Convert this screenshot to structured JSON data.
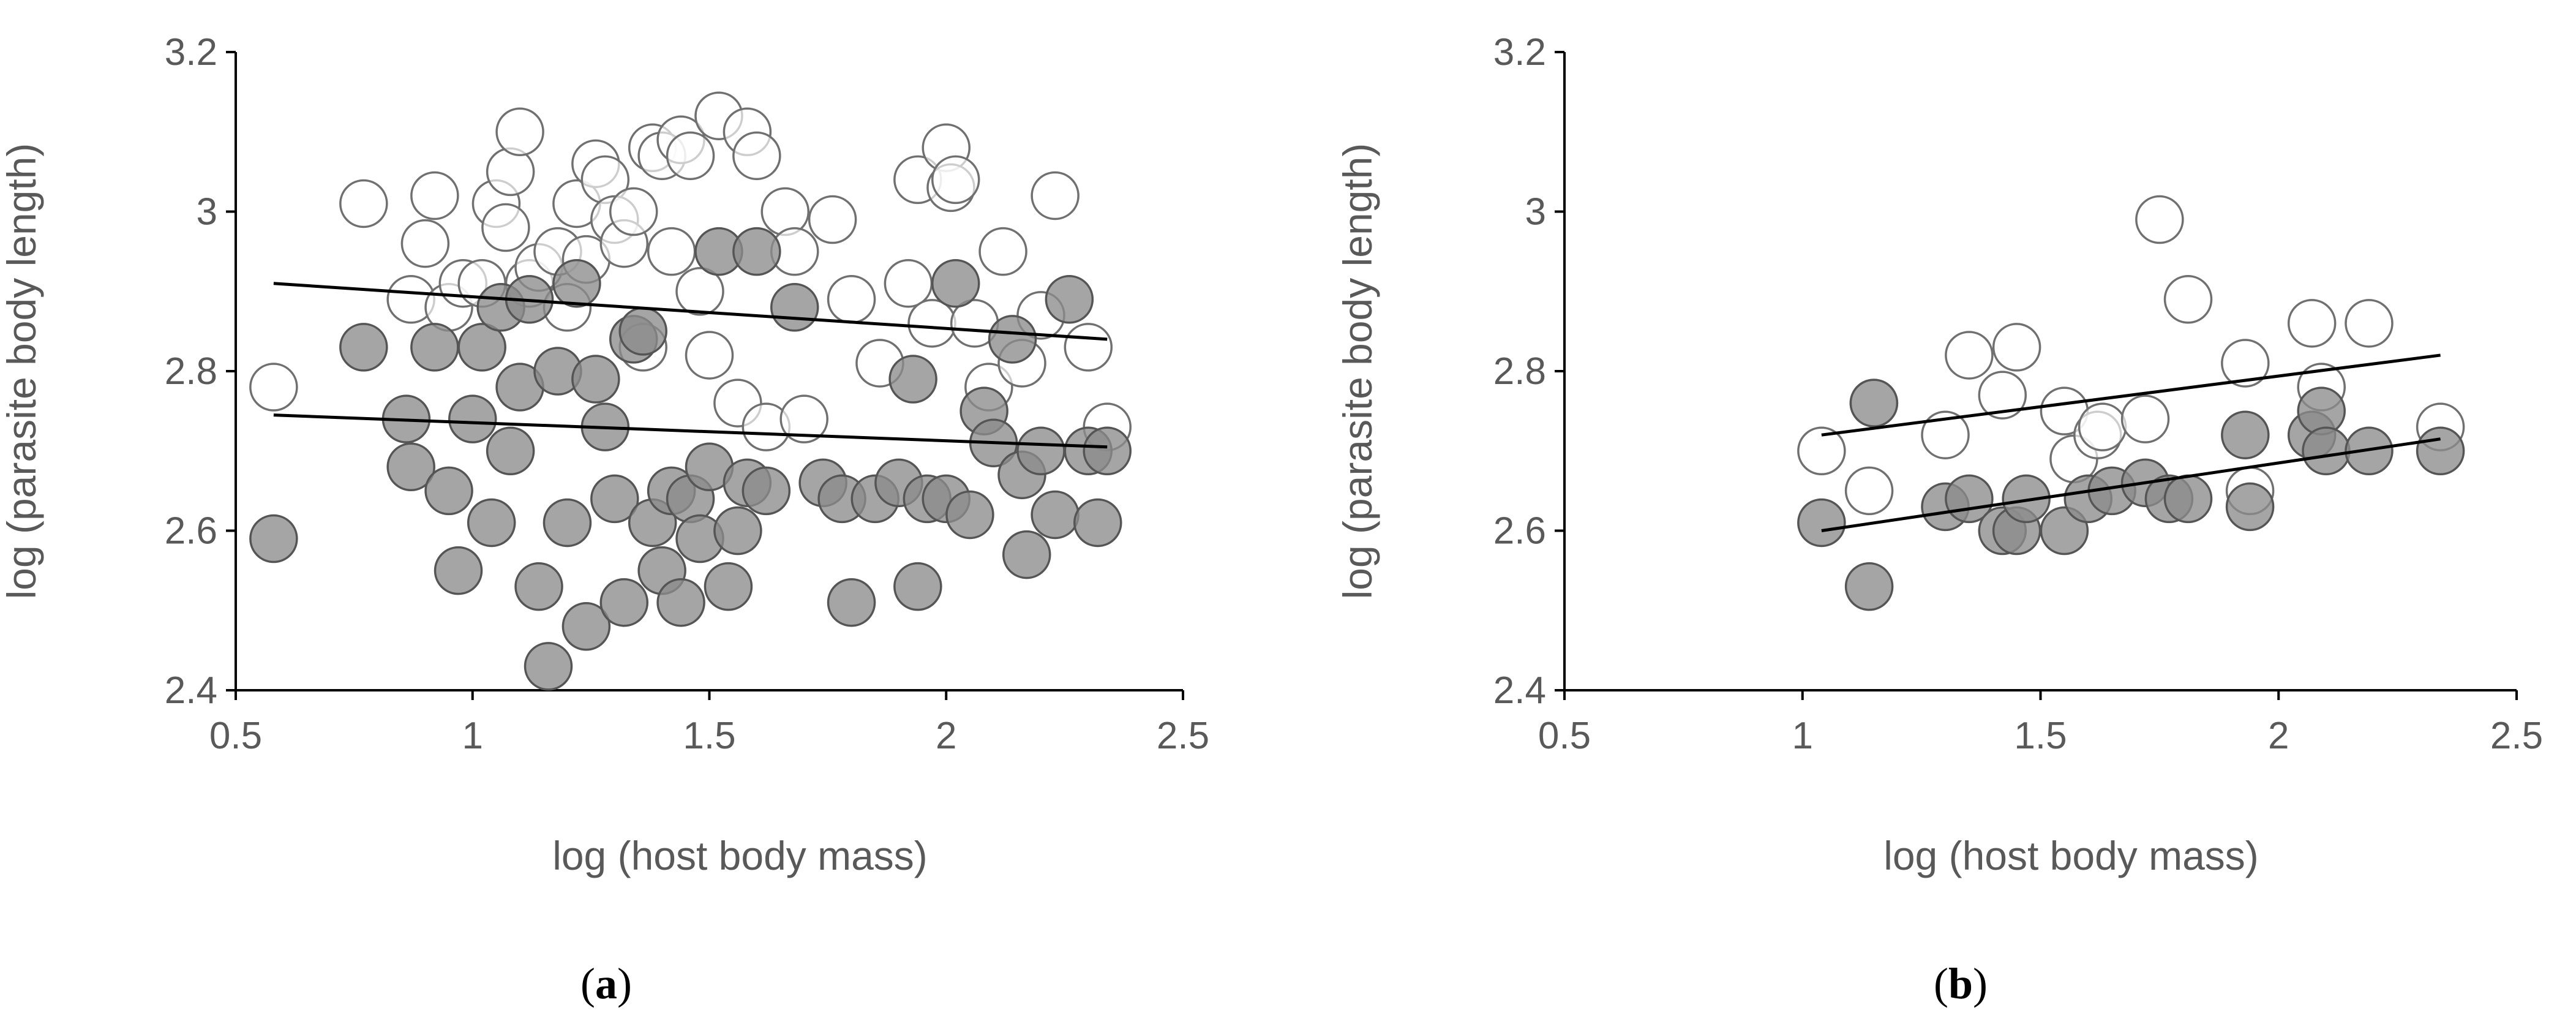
{
  "figure": {
    "panels": [
      {
        "label_open": "(",
        "label_letter": "a",
        "label_close": ")"
      },
      {
        "label_open": "(",
        "label_letter": "b",
        "label_close": ")"
      }
    ]
  },
  "colors": {
    "open_fill": "#ffffff",
    "open_stroke": "#707070",
    "filled_fill": "#8c8c8c",
    "filled_stroke": "#555555",
    "fit_line": "#000000",
    "axis": "#000000",
    "text": "#595959"
  },
  "chart_data": [
    {
      "type": "scatter",
      "panel": "a",
      "xlabel": "log (host body mass)",
      "ylabel": "log (parasite body length)",
      "xlim": [
        0.5,
        2.5
      ],
      "ylim": [
        2.4,
        3.2
      ],
      "xticks": [
        "0.5",
        "1",
        "1.5",
        "2",
        "2.5"
      ],
      "yticks": [
        "2.4",
        "2.6",
        "2.8",
        "3",
        "3.2"
      ],
      "series": [
        {
          "name": "open",
          "style": "open",
          "points": [
            [
              0.58,
              2.78
            ],
            [
              0.77,
              3.01
            ],
            [
              0.87,
              2.89
            ],
            [
              0.9,
              2.96
            ],
            [
              0.92,
              3.02
            ],
            [
              0.95,
              2.88
            ],
            [
              0.98,
              2.91
            ],
            [
              1.02,
              2.91
            ],
            [
              1.05,
              3.01
            ],
            [
              1.07,
              2.98
            ],
            [
              1.08,
              3.05
            ],
            [
              1.1,
              3.1
            ],
            [
              1.12,
              2.91
            ],
            [
              1.14,
              2.93
            ],
            [
              1.18,
              2.95
            ],
            [
              1.2,
              2.88
            ],
            [
              1.22,
              3.01
            ],
            [
              1.24,
              2.94
            ],
            [
              1.26,
              3.06
            ],
            [
              1.28,
              3.04
            ],
            [
              1.3,
              2.99
            ],
            [
              1.32,
              2.96
            ],
            [
              1.34,
              3.0
            ],
            [
              1.36,
              2.83
            ],
            [
              1.38,
              3.08
            ],
            [
              1.4,
              3.07
            ],
            [
              1.42,
              2.95
            ],
            [
              1.44,
              3.09
            ],
            [
              1.46,
              3.07
            ],
            [
              1.48,
              2.9
            ],
            [
              1.5,
              2.82
            ],
            [
              1.52,
              3.12
            ],
            [
              1.56,
              2.76
            ],
            [
              1.58,
              3.1
            ],
            [
              1.6,
              3.07
            ],
            [
              1.62,
              2.73
            ],
            [
              1.66,
              3.0
            ],
            [
              1.68,
              2.95
            ],
            [
              1.7,
              2.74
            ],
            [
              1.76,
              2.99
            ],
            [
              1.8,
              2.89
            ],
            [
              1.86,
              2.81
            ],
            [
              1.92,
              2.91
            ],
            [
              1.94,
              3.04
            ],
            [
              1.97,
              2.86
            ],
            [
              2.0,
              3.08
            ],
            [
              2.01,
              3.03
            ],
            [
              2.02,
              3.04
            ],
            [
              2.06,
              2.86
            ],
            [
              2.09,
              2.78
            ],
            [
              2.12,
              2.95
            ],
            [
              2.16,
              2.81
            ],
            [
              2.2,
              2.87
            ],
            [
              2.23,
              3.02
            ],
            [
              2.3,
              2.83
            ],
            [
              2.34,
              2.73
            ]
          ]
        },
        {
          "name": "filled",
          "style": "filled",
          "points": [
            [
              0.58,
              2.59
            ],
            [
              0.77,
              2.83
            ],
            [
              0.86,
              2.74
            ],
            [
              0.87,
              2.68
            ],
            [
              0.92,
              2.83
            ],
            [
              0.95,
              2.65
            ],
            [
              0.97,
              2.55
            ],
            [
              1.0,
              2.74
            ],
            [
              1.02,
              2.83
            ],
            [
              1.04,
              2.61
            ],
            [
              1.06,
              2.88
            ],
            [
              1.08,
              2.7
            ],
            [
              1.1,
              2.78
            ],
            [
              1.12,
              2.89
            ],
            [
              1.14,
              2.53
            ],
            [
              1.16,
              2.43
            ],
            [
              1.18,
              2.8
            ],
            [
              1.2,
              2.61
            ],
            [
              1.22,
              2.91
            ],
            [
              1.24,
              2.48
            ],
            [
              1.26,
              2.79
            ],
            [
              1.28,
              2.73
            ],
            [
              1.3,
              2.64
            ],
            [
              1.32,
              2.51
            ],
            [
              1.34,
              2.84
            ],
            [
              1.36,
              2.85
            ],
            [
              1.38,
              2.61
            ],
            [
              1.4,
              2.55
            ],
            [
              1.42,
              2.65
            ],
            [
              1.44,
              2.51
            ],
            [
              1.46,
              2.64
            ],
            [
              1.48,
              2.59
            ],
            [
              1.5,
              2.68
            ],
            [
              1.52,
              2.95
            ],
            [
              1.54,
              2.53
            ],
            [
              1.56,
              2.6
            ],
            [
              1.58,
              2.66
            ],
            [
              1.6,
              2.95
            ],
            [
              1.62,
              2.65
            ],
            [
              1.68,
              2.88
            ],
            [
              1.74,
              2.66
            ],
            [
              1.78,
              2.64
            ],
            [
              1.8,
              2.51
            ],
            [
              1.85,
              2.64
            ],
            [
              1.9,
              2.66
            ],
            [
              1.93,
              2.79
            ],
            [
              1.94,
              2.53
            ],
            [
              1.96,
              2.64
            ],
            [
              2.0,
              2.64
            ],
            [
              2.02,
              2.91
            ],
            [
              2.05,
              2.62
            ],
            [
              2.08,
              2.75
            ],
            [
              2.1,
              2.71
            ],
            [
              2.14,
              2.84
            ],
            [
              2.16,
              2.67
            ],
            [
              2.17,
              2.57
            ],
            [
              2.2,
              2.7
            ],
            [
              2.23,
              2.62
            ],
            [
              2.26,
              2.89
            ],
            [
              2.3,
              2.7
            ],
            [
              2.32,
              2.61
            ],
            [
              2.34,
              2.7
            ]
          ]
        }
      ],
      "fit_lines": [
        {
          "name": "open",
          "x": [
            0.58,
            2.34
          ],
          "y": [
            2.91,
            2.84
          ]
        },
        {
          "name": "filled",
          "x": [
            0.58,
            2.34
          ],
          "y": [
            2.745,
            2.705
          ]
        }
      ]
    },
    {
      "type": "scatter",
      "panel": "b",
      "xlabel": "log (host body mass)",
      "ylabel": "log (parasite body length)",
      "xlim": [
        0.5,
        2.5
      ],
      "ylim": [
        2.4,
        3.2
      ],
      "xticks": [
        "0.5",
        "1",
        "1.5",
        "2",
        "2.5"
      ],
      "yticks": [
        "2.4",
        "2.6",
        "2.8",
        "3",
        "3.2"
      ],
      "series": [
        {
          "name": "open",
          "style": "open",
          "points": [
            [
              1.04,
              2.7
            ],
            [
              1.14,
              2.65
            ],
            [
              1.15,
              2.76
            ],
            [
              1.3,
              2.72
            ],
            [
              1.35,
              2.82
            ],
            [
              1.42,
              2.77
            ],
            [
              1.45,
              2.83
            ],
            [
              1.55,
              2.75
            ],
            [
              1.57,
              2.69
            ],
            [
              1.62,
              2.72
            ],
            [
              1.63,
              2.73
            ],
            [
              1.72,
              2.74
            ],
            [
              1.75,
              2.99
            ],
            [
              1.81,
              2.89
            ],
            [
              1.93,
              2.81
            ],
            [
              1.94,
              2.65
            ],
            [
              2.07,
              2.86
            ],
            [
              2.09,
              2.78
            ],
            [
              2.19,
              2.86
            ],
            [
              2.34,
              2.73
            ]
          ]
        },
        {
          "name": "filled",
          "style": "filled",
          "points": [
            [
              1.04,
              2.61
            ],
            [
              1.14,
              2.53
            ],
            [
              1.15,
              2.76
            ],
            [
              1.3,
              2.63
            ],
            [
              1.35,
              2.64
            ],
            [
              1.42,
              2.6
            ],
            [
              1.45,
              2.6
            ],
            [
              1.47,
              2.64
            ],
            [
              1.55,
              2.6
            ],
            [
              1.6,
              2.64
            ],
            [
              1.65,
              2.65
            ],
            [
              1.72,
              2.66
            ],
            [
              1.77,
              2.64
            ],
            [
              1.81,
              2.64
            ],
            [
              1.93,
              2.72
            ],
            [
              1.94,
              2.63
            ],
            [
              2.07,
              2.72
            ],
            [
              2.09,
              2.75
            ],
            [
              2.1,
              2.7
            ],
            [
              2.19,
              2.7
            ],
            [
              2.34,
              2.7
            ]
          ]
        }
      ],
      "fit_lines": [
        {
          "name": "open",
          "x": [
            1.04,
            2.34
          ],
          "y": [
            2.72,
            2.82
          ]
        },
        {
          "name": "filled",
          "x": [
            1.04,
            2.34
          ],
          "y": [
            2.6,
            2.715
          ]
        }
      ]
    }
  ]
}
